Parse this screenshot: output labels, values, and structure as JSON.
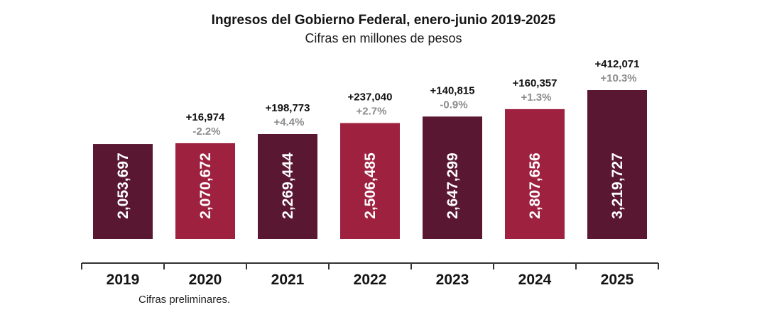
{
  "chart_data": {
    "type": "bar",
    "title": "Ingresos del Gobierno Federal, enero-junio 2019-2025",
    "subtitle": "Cifras en millones de pesos",
    "categories": [
      "2019",
      "2020",
      "2021",
      "2022",
      "2023",
      "2024",
      "2025"
    ],
    "values": [
      2053697,
      2070672,
      2269444,
      2506485,
      2647299,
      2807656,
      3219727
    ],
    "value_labels": [
      "2,053,697",
      "2,070,672",
      "2,269,444",
      "2,506,485",
      "2,647,299",
      "2,807,656",
      "3,219,727"
    ],
    "changes": [
      "",
      "+16,974",
      "+198,773",
      "+237,040",
      "+140,815",
      "+160,357",
      "+412,071"
    ],
    "pct_changes": [
      "",
      "-2.2%",
      "+4.4%",
      "+2.7%",
      "-0.9%",
      "+1.3%",
      "+10.3%"
    ],
    "bar_colors": [
      "#5a1732",
      "#9e2240",
      "#5a1732",
      "#9e2240",
      "#5a1732",
      "#9e2240",
      "#5a1732"
    ],
    "ylim": [
      0,
      3300000
    ],
    "xlabel": "",
    "ylabel": "",
    "note": "Cifras preliminares."
  }
}
